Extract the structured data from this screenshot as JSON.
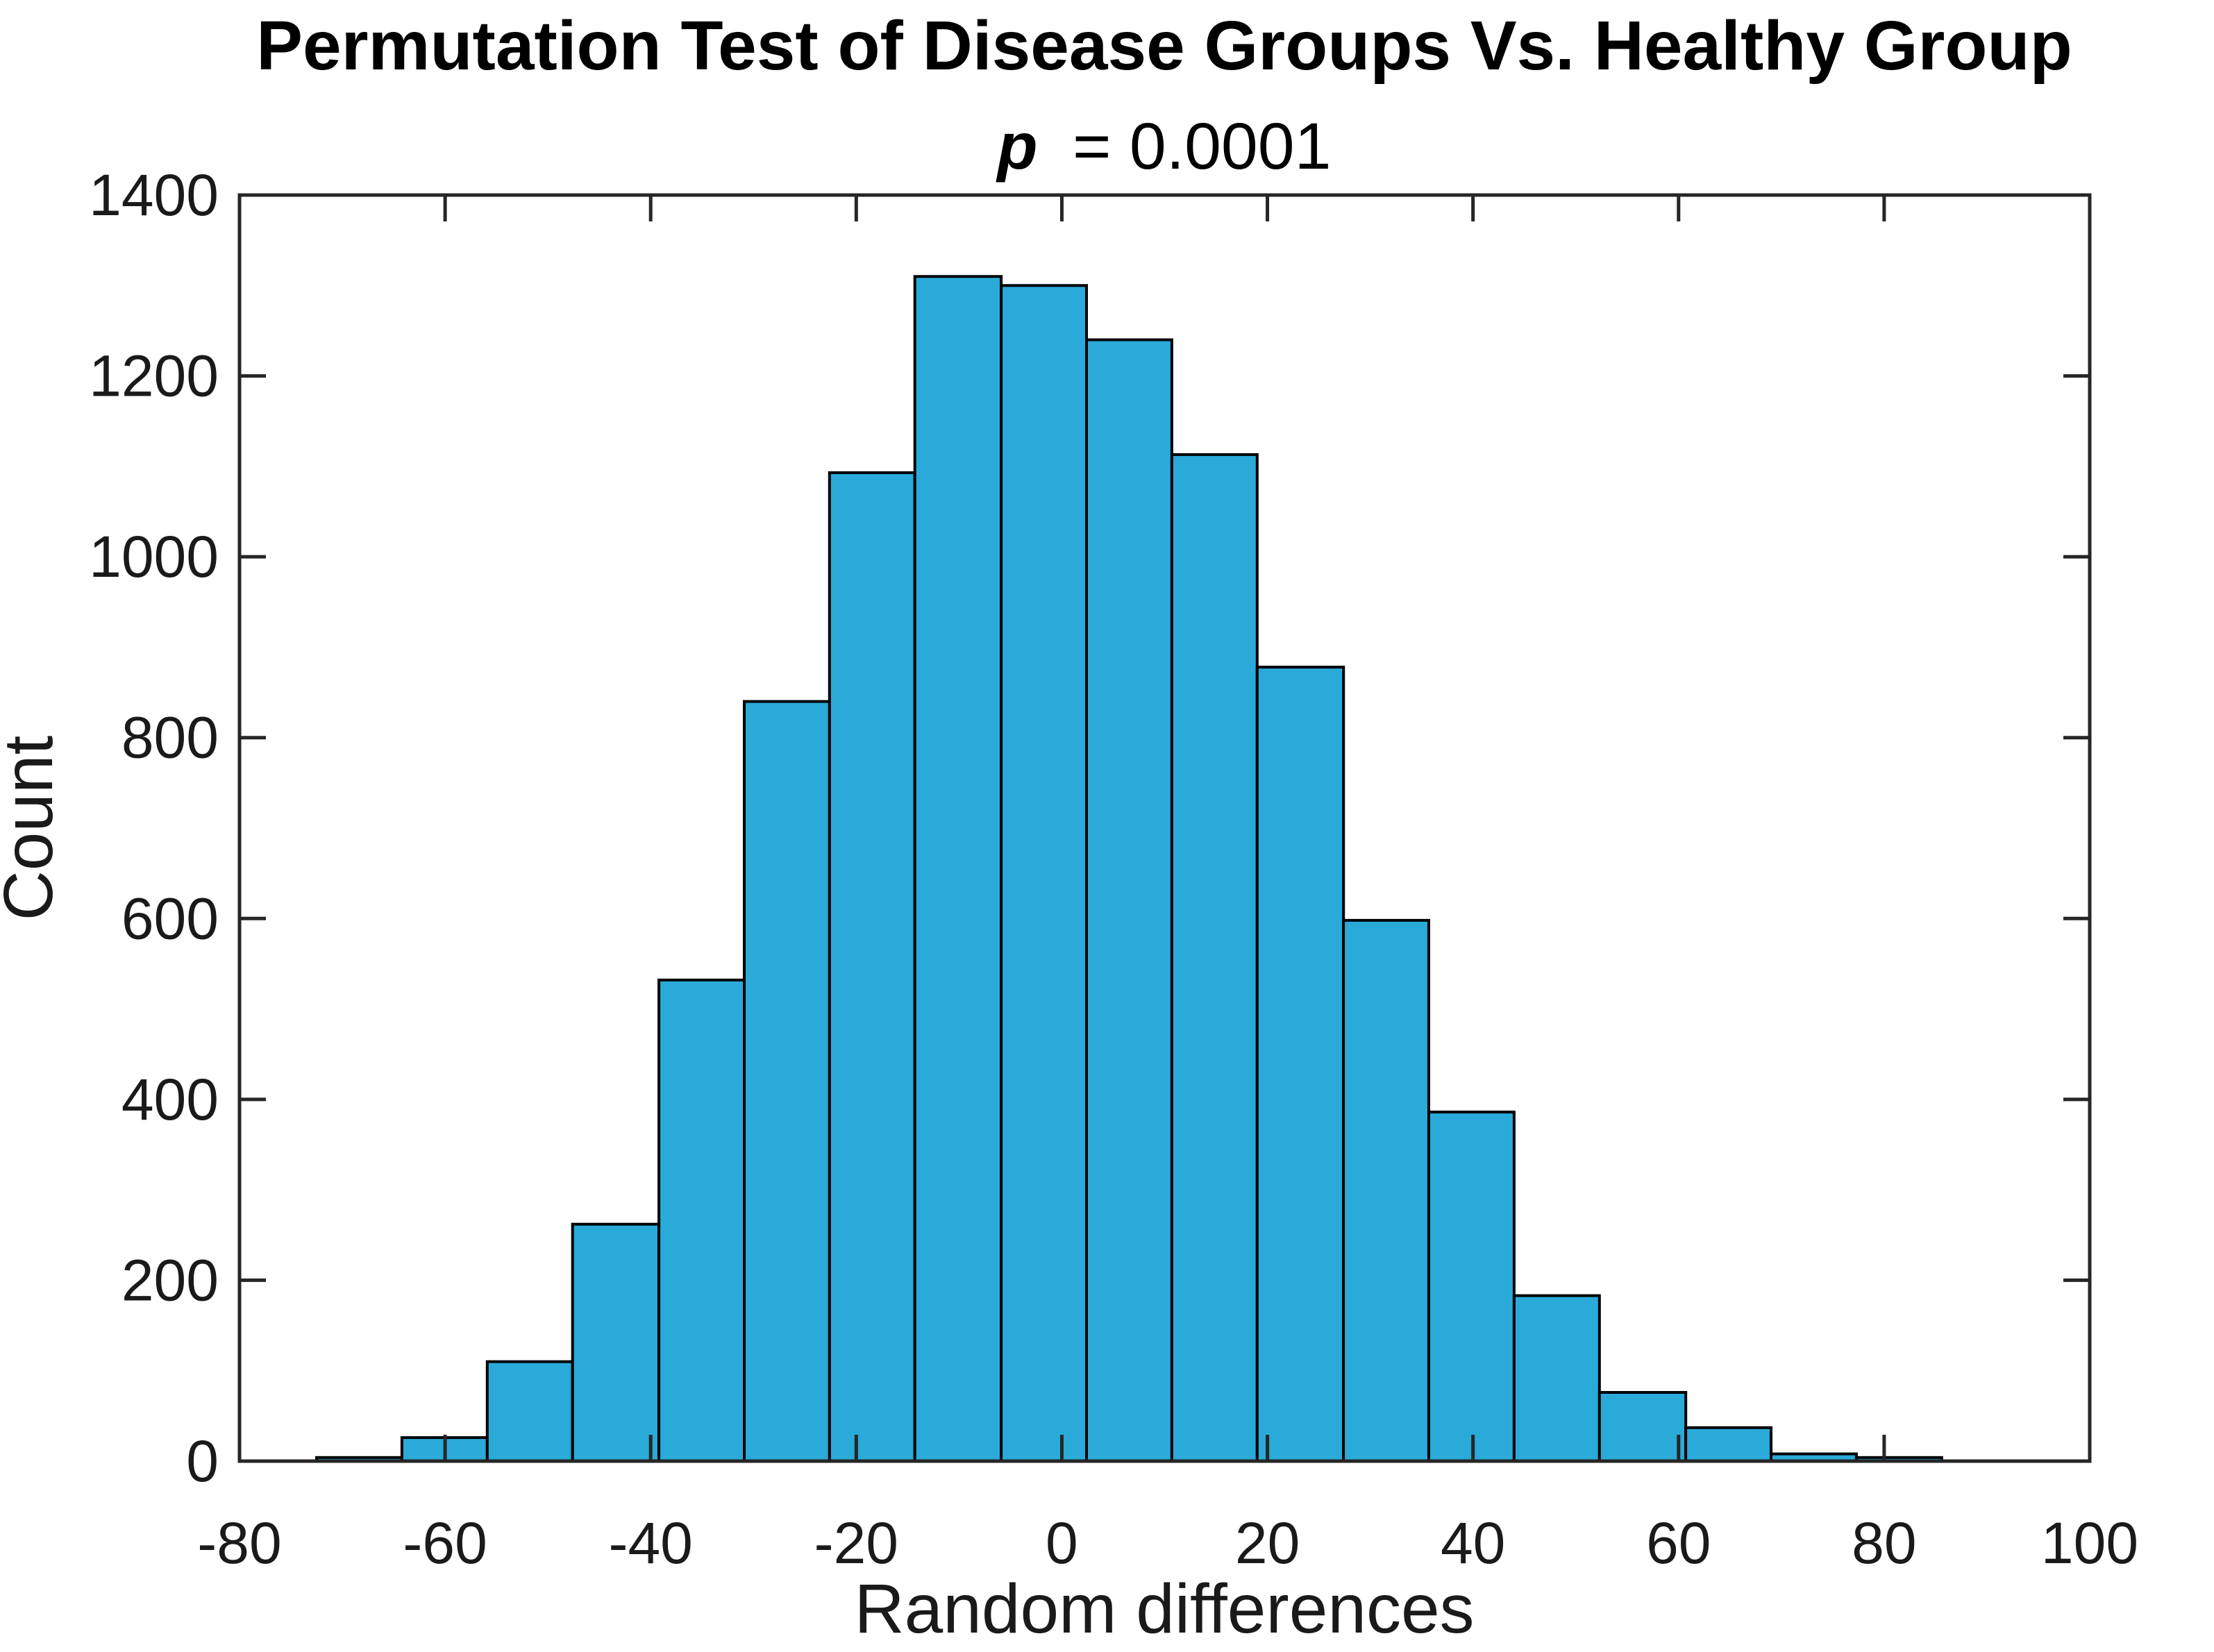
{
  "figure": {
    "title": "Permutation Test of Disease Groups Vs. Healthy Group",
    "subtitle_p": "p",
    "subtitle_rest": "= 0.0001"
  },
  "chart_data": {
    "type": "bar",
    "subtype": "histogram",
    "title": "Permutation Test of Disease Groups Vs. Healthy Group",
    "subtitle": "p = 0.0001",
    "p_value": 0.0001,
    "xlabel": "Random differences",
    "ylabel": "Count",
    "xlim": [
      -80,
      100
    ],
    "ylim": [
      0,
      1400
    ],
    "grid": false,
    "legend": false,
    "x_ticks": [
      -80,
      -60,
      -40,
      -20,
      0,
      20,
      40,
      60,
      80,
      100
    ],
    "x_tick_labels": [
      "-80",
      "-60",
      "-40",
      "-20",
      "0",
      "20",
      "40",
      "60",
      "80",
      "100"
    ],
    "y_ticks": [
      0,
      200,
      400,
      600,
      800,
      1000,
      1200,
      1400
    ],
    "y_tick_labels": [
      "0",
      "200",
      "400",
      "600",
      "800",
      "1000",
      "1200",
      "1400"
    ],
    "bin_edges": [
      -72.5,
      -64.2,
      -55.9,
      -47.6,
      -39.2,
      -30.9,
      -22.6,
      -14.3,
      -5.9,
      2.4,
      10.7,
      19.0,
      27.4,
      35.7,
      44.0,
      52.3,
      60.7,
      69.0,
      77.3,
      85.6
    ],
    "counts": [
      4,
      26,
      110,
      262,
      532,
      840,
      1093,
      1310,
      1300,
      1240,
      1113,
      878,
      598,
      386,
      183,
      76,
      37,
      8,
      4
    ],
    "colors": {
      "bar_fill": "#2AAAD8",
      "bar_edge": "#000000",
      "axis_color": "#262626",
      "title_color": "#000000",
      "background": "#ffffff"
    }
  }
}
